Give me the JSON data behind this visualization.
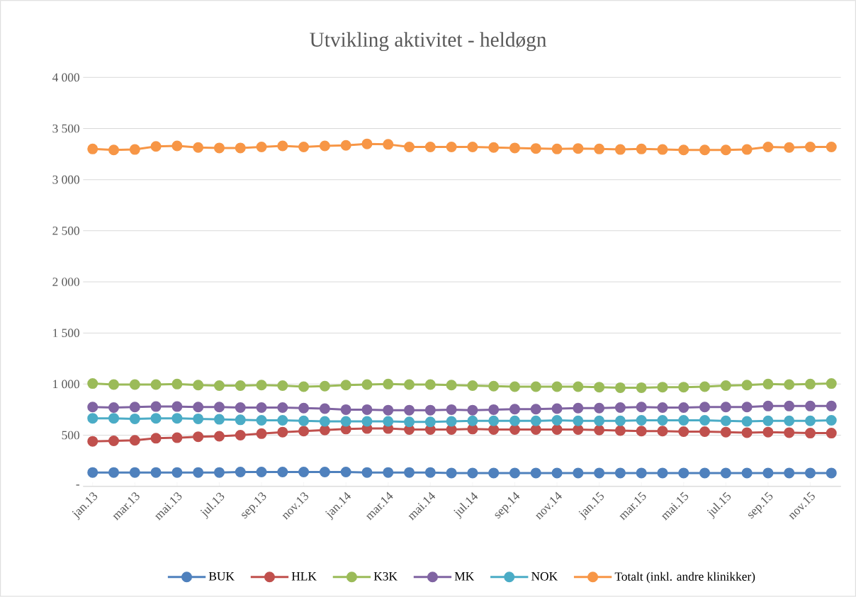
{
  "chart_data": {
    "type": "line",
    "title": "Utvikling aktivitet - heldøgn",
    "categories": [
      "jan.13",
      null,
      "mar.13",
      null,
      "mai.13",
      null,
      "jul.13",
      null,
      "sep.13",
      null,
      "nov.13",
      null,
      "jan.14",
      null,
      "mar.14",
      null,
      "mai.14",
      null,
      "jul.14",
      null,
      "sep.14",
      null,
      "nov.14",
      null,
      "jan.15",
      null,
      "mar.15",
      null,
      "mai.15",
      null,
      "jul.15",
      null,
      "sep.15",
      null,
      "nov.15",
      null
    ],
    "series": [
      {
        "name": "BUK",
        "color": "#4f81bd",
        "values": [
          135,
          135,
          135,
          135,
          135,
          135,
          135,
          140,
          140,
          140,
          140,
          140,
          140,
          135,
          135,
          135,
          135,
          130,
          130,
          130,
          130,
          130,
          130,
          130,
          130,
          130,
          130,
          130,
          130,
          130,
          130,
          130,
          130,
          130,
          130,
          130
        ]
      },
      {
        "name": "HLK",
        "color": "#c0504d",
        "values": [
          440,
          445,
          450,
          470,
          475,
          485,
          490,
          500,
          515,
          530,
          540,
          550,
          560,
          565,
          565,
          555,
          555,
          555,
          560,
          555,
          555,
          555,
          555,
          555,
          550,
          545,
          540,
          540,
          535,
          535,
          530,
          525,
          530,
          525,
          520,
          520
        ]
      },
      {
        "name": "K3K",
        "color": "#9bbb59",
        "values": [
          1005,
          995,
          995,
          995,
          1000,
          990,
          985,
          985,
          990,
          985,
          975,
          980,
          990,
          995,
          1000,
          995,
          995,
          990,
          985,
          980,
          975,
          975,
          975,
          975,
          970,
          965,
          965,
          970,
          970,
          975,
          985,
          990,
          1000,
          995,
          1000,
          1005
        ]
      },
      {
        "name": "MK",
        "color": "#8064a2",
        "values": [
          775,
          770,
          775,
          780,
          780,
          775,
          775,
          770,
          770,
          770,
          765,
          760,
          750,
          750,
          745,
          745,
          745,
          750,
          745,
          750,
          755,
          755,
          760,
          765,
          765,
          770,
          775,
          770,
          770,
          775,
          775,
          775,
          785,
          785,
          785,
          785
        ]
      },
      {
        "name": "NOK",
        "color": "#4bacc6",
        "values": [
          665,
          665,
          660,
          665,
          665,
          660,
          655,
          650,
          645,
          645,
          640,
          635,
          635,
          635,
          635,
          630,
          630,
          635,
          640,
          640,
          640,
          640,
          645,
          640,
          640,
          640,
          645,
          645,
          645,
          645,
          640,
          635,
          640,
          640,
          640,
          645
        ]
      },
      {
        "name": "Totalt (inkl. andre klinikker)",
        "color": "#f79646",
        "values": [
          3300,
          3290,
          3295,
          3325,
          3330,
          3315,
          3310,
          3310,
          3320,
          3330,
          3320,
          3330,
          3335,
          3350,
          3345,
          3320,
          3320,
          3320,
          3320,
          3315,
          3310,
          3305,
          3300,
          3305,
          3300,
          3295,
          3300,
          3295,
          3290,
          3290,
          3290,
          3295,
          3320,
          3315,
          3320,
          3320
        ]
      }
    ],
    "ylim": [
      0,
      4000
    ],
    "yticks": [
      {
        "value": 0,
        "label": "-"
      },
      500,
      {
        "value": 1000,
        "label": "1 000"
      },
      {
        "value": 1500,
        "label": "1 500"
      },
      {
        "value": 2000,
        "label": "2 000"
      },
      {
        "value": 2500,
        "label": "2 500"
      },
      {
        "value": 3000,
        "label": "3 000"
      },
      {
        "value": 3500,
        "label": "3 500"
      },
      {
        "value": 4000,
        "label": "4 000"
      }
    ],
    "grid": "y",
    "legend": "bottom",
    "marker": "circle",
    "line_style": "solid"
  }
}
